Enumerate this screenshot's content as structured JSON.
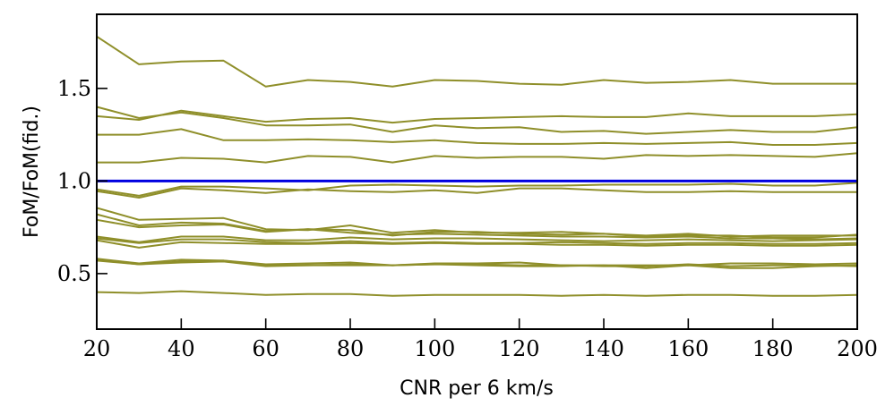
{
  "chart_data": {
    "type": "line",
    "xlabel": "CNR per 6 km/s",
    "ylabel": "FoM/FoM(fid.)",
    "xlim": [
      20,
      200
    ],
    "ylim": [
      0.2,
      1.9
    ],
    "xticks": [
      20,
      40,
      60,
      80,
      100,
      120,
      140,
      160,
      180,
      200
    ],
    "xtick_labels": [
      "20",
      "40",
      "60",
      "80",
      "100",
      "120",
      "140",
      "160",
      "180",
      "200"
    ],
    "yticks": [
      0.5,
      1.0,
      1.5
    ],
    "ytick_labels": [
      "0.5",
      "1.0",
      "1.5"
    ],
    "grid": false,
    "line_color": "#8f8f2a",
    "reference_color": "#0000e0",
    "x": [
      20,
      30,
      40,
      50,
      60,
      70,
      80,
      90,
      100,
      110,
      120,
      130,
      140,
      150,
      160,
      170,
      180,
      190,
      200
    ],
    "reference": {
      "y": 1.0
    },
    "series": [
      {
        "values": [
          1.78,
          1.63,
          1.645,
          1.65,
          1.51,
          1.545,
          1.535,
          1.51,
          1.545,
          1.54,
          1.525,
          1.52,
          1.545,
          1.53,
          1.535,
          1.545,
          1.525,
          1.525,
          1.525
        ]
      },
      {
        "values": [
          1.4,
          1.34,
          1.37,
          1.34,
          1.3,
          1.3,
          1.305,
          1.265,
          1.3,
          1.285,
          1.29,
          1.265,
          1.27,
          1.255,
          1.265,
          1.275,
          1.265,
          1.265,
          1.29
        ]
      },
      {
        "values": [
          1.35,
          1.33,
          1.38,
          1.35,
          1.32,
          1.335,
          1.34,
          1.315,
          1.335,
          1.34,
          1.345,
          1.35,
          1.345,
          1.345,
          1.365,
          1.35,
          1.35,
          1.35,
          1.36
        ]
      },
      {
        "values": [
          1.25,
          1.25,
          1.28,
          1.22,
          1.22,
          1.225,
          1.22,
          1.21,
          1.22,
          1.205,
          1.2,
          1.2,
          1.205,
          1.2,
          1.205,
          1.21,
          1.195,
          1.195,
          1.205
        ]
      },
      {
        "values": [
          1.1,
          1.1,
          1.125,
          1.12,
          1.1,
          1.135,
          1.13,
          1.1,
          1.135,
          1.125,
          1.13,
          1.13,
          1.12,
          1.14,
          1.135,
          1.14,
          1.135,
          1.13,
          1.15
        ]
      },
      {
        "values": [
          0.955,
          0.92,
          0.97,
          0.97,
          0.96,
          0.95,
          0.975,
          0.98,
          0.975,
          0.97,
          0.975,
          0.975,
          0.98,
          0.98,
          0.98,
          0.985,
          0.975,
          0.975,
          0.99
        ]
      },
      {
        "values": [
          0.945,
          0.91,
          0.96,
          0.95,
          0.935,
          0.955,
          0.945,
          0.94,
          0.95,
          0.935,
          0.96,
          0.96,
          0.95,
          0.94,
          0.94,
          0.945,
          0.94,
          0.94,
          0.94
        ]
      },
      {
        "values": [
          0.855,
          0.79,
          0.795,
          0.8,
          0.74,
          0.735,
          0.76,
          0.72,
          0.735,
          0.72,
          0.72,
          0.725,
          0.715,
          0.705,
          0.715,
          0.7,
          0.705,
          0.705,
          0.705
        ]
      },
      {
        "values": [
          0.82,
          0.76,
          0.775,
          0.77,
          0.73,
          0.74,
          0.735,
          0.705,
          0.725,
          0.725,
          0.715,
          0.71,
          0.715,
          0.7,
          0.705,
          0.705,
          0.695,
          0.695,
          0.71
        ]
      },
      {
        "values": [
          0.79,
          0.75,
          0.76,
          0.765,
          0.725,
          0.74,
          0.72,
          0.71,
          0.715,
          0.71,
          0.705,
          0.7,
          0.7,
          0.695,
          0.7,
          0.69,
          0.69,
          0.685,
          0.69
        ]
      },
      {
        "values": [
          0.7,
          0.67,
          0.7,
          0.7,
          0.68,
          0.68,
          0.695,
          0.685,
          0.69,
          0.69,
          0.685,
          0.68,
          0.675,
          0.68,
          0.685,
          0.68,
          0.675,
          0.68,
          0.685
        ]
      },
      {
        "values": [
          0.69,
          0.665,
          0.685,
          0.685,
          0.67,
          0.665,
          0.675,
          0.665,
          0.67,
          0.665,
          0.665,
          0.67,
          0.665,
          0.66,
          0.665,
          0.665,
          0.66,
          0.66,
          0.665
        ]
      },
      {
        "values": [
          0.68,
          0.64,
          0.67,
          0.665,
          0.66,
          0.66,
          0.665,
          0.66,
          0.665,
          0.66,
          0.66,
          0.655,
          0.655,
          0.65,
          0.655,
          0.655,
          0.65,
          0.65,
          0.655
        ]
      },
      {
        "values": [
          0.58,
          0.555,
          0.575,
          0.57,
          0.55,
          0.555,
          0.56,
          0.545,
          0.555,
          0.555,
          0.56,
          0.545,
          0.545,
          0.545,
          0.545,
          0.555,
          0.555,
          0.55,
          0.555
        ]
      },
      {
        "values": [
          0.575,
          0.55,
          0.565,
          0.57,
          0.545,
          0.545,
          0.55,
          0.545,
          0.55,
          0.545,
          0.54,
          0.54,
          0.545,
          0.53,
          0.545,
          0.53,
          0.53,
          0.54,
          0.545
        ]
      },
      {
        "values": [
          0.57,
          0.55,
          0.56,
          0.565,
          0.54,
          0.545,
          0.545,
          0.545,
          0.55,
          0.55,
          0.545,
          0.545,
          0.54,
          0.54,
          0.55,
          0.54,
          0.545,
          0.545,
          0.54
        ]
      },
      {
        "values": [
          0.4,
          0.395,
          0.405,
          0.395,
          0.385,
          0.39,
          0.39,
          0.38,
          0.385,
          0.385,
          0.385,
          0.38,
          0.385,
          0.38,
          0.385,
          0.385,
          0.38,
          0.38,
          0.385
        ]
      }
    ]
  }
}
